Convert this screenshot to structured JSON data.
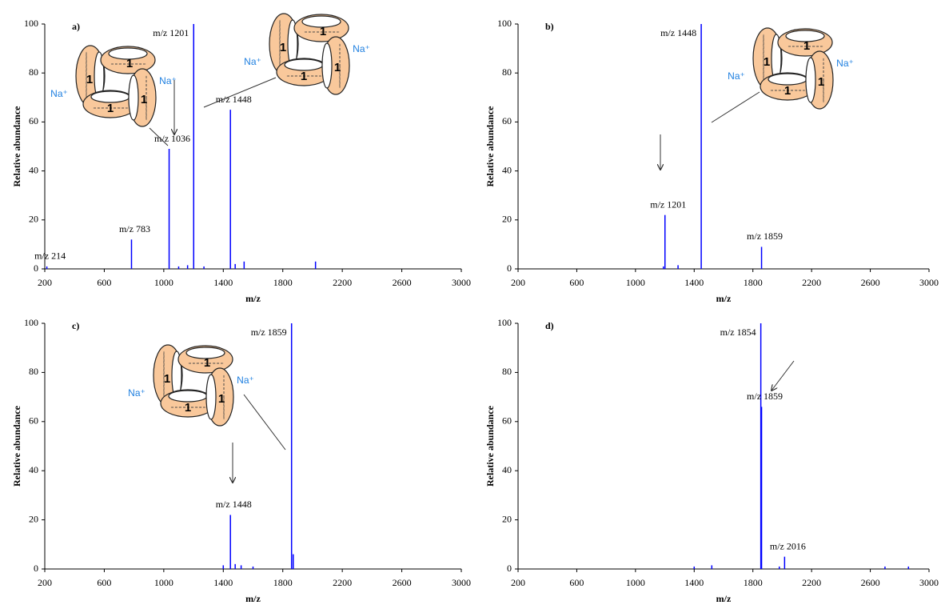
{
  "chart_data": [
    {
      "type": "bar",
      "panel": "a)",
      "xlabel": "m/z",
      "ylabel": "Relative abundance",
      "color": "#0000ff",
      "x": [
        214,
        783,
        1036,
        1100,
        1160,
        1201,
        1270,
        1448,
        1480,
        1540,
        2020
      ],
      "values": [
        1,
        12,
        49,
        1,
        1.5,
        100,
        1,
        65,
        2,
        3,
        3
      ],
      "peak_labels": [
        "m/z 214",
        "m/z 783",
        "m/z 1036",
        null,
        null,
        "m/z 1201",
        null,
        "m/z 1448",
        null,
        null,
        null
      ],
      "xlim": [
        200,
        3000
      ],
      "xticks": [
        200,
        600,
        1000,
        1400,
        1800,
        2200,
        2600,
        3000
      ],
      "ylim": [
        0,
        100
      ],
      "yticks": [
        0,
        20,
        40,
        60,
        80,
        100
      ],
      "insets": [
        {
          "rings": [
            "1",
            "1",
            "1",
            "1"
          ],
          "ions": [
            "Na⁺",
            "Na⁺"
          ]
        },
        {
          "rings": [
            "1",
            "1",
            "1",
            "1"
          ],
          "ions": [
            "Na⁺",
            "Na⁺"
          ]
        }
      ]
    },
    {
      "type": "bar",
      "panel": "b)",
      "xlabel": "m/z",
      "ylabel": "Relative abundance",
      "color": "#0000ff",
      "x": [
        1190,
        1201,
        1290,
        1448,
        1859
      ],
      "values": [
        1,
        22,
        1.5,
        100,
        9
      ],
      "peak_labels": [
        null,
        "m/z 1201",
        null,
        "m/z 1448",
        "m/z 1859"
      ],
      "xlim": [
        200,
        3000
      ],
      "xticks": [
        200,
        600,
        1000,
        1400,
        1800,
        2200,
        2600,
        3000
      ],
      "ylim": [
        0,
        100
      ],
      "yticks": [
        0,
        20,
        40,
        60,
        80,
        100
      ],
      "insets": [
        {
          "rings": [
            "1",
            "1",
            "1",
            "1"
          ],
          "ions": [
            "Na⁺",
            "Na⁺"
          ]
        }
      ]
    },
    {
      "type": "bar",
      "panel": "c)",
      "xlabel": "m/z",
      "ylabel": "Relative abundance",
      "color": "#0000ff",
      "x": [
        1400,
        1448,
        1480,
        1520,
        1600,
        1859,
        1870
      ],
      "values": [
        1.5,
        22,
        2,
        1.5,
        1,
        100,
        6
      ],
      "peak_labels": [
        null,
        "m/z 1448",
        null,
        null,
        null,
        "m/z 1859",
        null
      ],
      "xlim": [
        200,
        3000
      ],
      "xticks": [
        200,
        600,
        1000,
        1400,
        1800,
        2200,
        2600,
        3000
      ],
      "ylim": [
        0,
        100
      ],
      "yticks": [
        0,
        20,
        40,
        60,
        80,
        100
      ],
      "insets": [
        {
          "rings": [
            "1",
            "1",
            "1",
            "1"
          ],
          "ions": [
            "Na⁺",
            "Na⁺"
          ]
        }
      ]
    },
    {
      "type": "bar",
      "panel": "d)",
      "xlabel": "m/z",
      "ylabel": "Relative abundance",
      "color": "#0000ff",
      "x": [
        1400,
        1520,
        1854,
        1859,
        1980,
        2016,
        2700,
        2860
      ],
      "values": [
        1,
        1.5,
        100,
        66,
        1,
        5,
        1,
        1
      ],
      "peak_labels": [
        null,
        null,
        "m/z 1854",
        "m/z 1859",
        null,
        "m/z 2016",
        null,
        null
      ],
      "xlim": [
        200,
        3000
      ],
      "xticks": [
        200,
        600,
        1000,
        1400,
        1800,
        2200,
        2600,
        3000
      ],
      "ylim": [
        0,
        100
      ],
      "yticks": [
        0,
        20,
        40,
        60,
        80,
        100
      ],
      "insets": []
    }
  ]
}
